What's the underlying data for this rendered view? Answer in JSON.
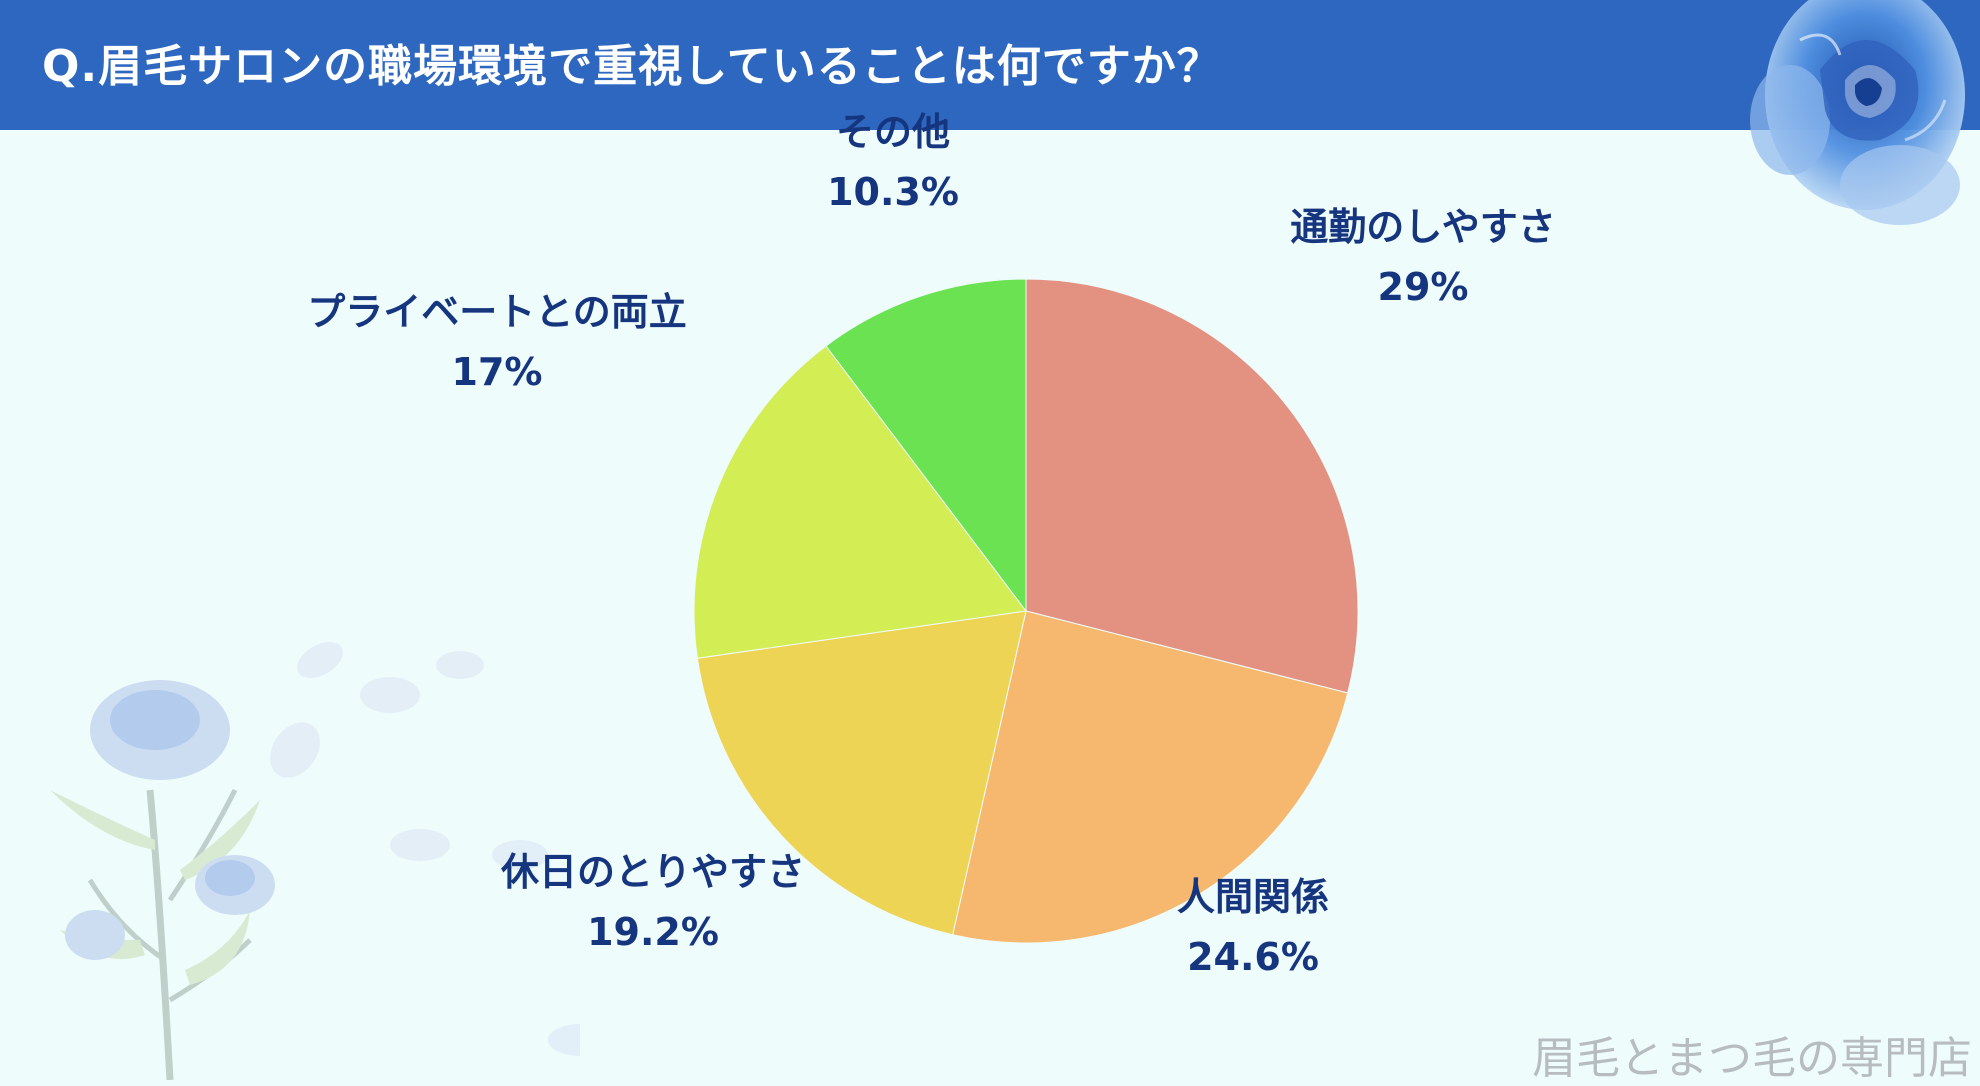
{
  "header": {
    "title": "Q.眉毛サロンの職場環境で重視していることは何ですか？"
  },
  "chart_data": {
    "type": "pie",
    "slices": [
      {
        "label": "通勤のしやすさ",
        "value": 29,
        "display": "29%",
        "color": "#e39281"
      },
      {
        "label": "人間関係",
        "value": 24.6,
        "display": "24.6%",
        "color": "#f6b86f"
      },
      {
        "label": "休日のとりやすさ",
        "value": 19.2,
        "display": "19.2%",
        "color": "#eed455"
      },
      {
        "label": "プライベートとの両立",
        "value": 17,
        "display": "17%",
        "color": "#d3ed55"
      },
      {
        "label": "その他",
        "value": 10.3,
        "display": "10.3%",
        "color": "#6ae252"
      }
    ],
    "start": "12 o'clock",
    "direction": "clockwise",
    "label_color": "#16357f"
  },
  "footer": {
    "text": "眉毛とまつ毛の専門店"
  },
  "colors": {
    "header_bg": "#2e67bf",
    "page_bg": "#effcfc"
  },
  "decorations": {
    "top_right": "blue-rose-icon",
    "bottom_left": "blue-rose-branch-icon"
  }
}
